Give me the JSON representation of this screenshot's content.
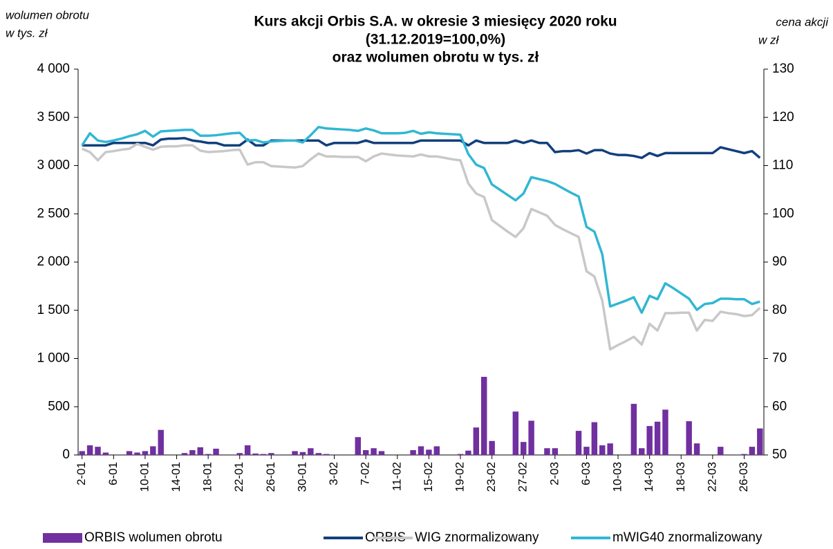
{
  "chart_data": {
    "type": "combo",
    "title": [
      "Kurs akcji Orbis S.A. w okresie 3 miesięcy 2020 roku",
      "(31.12.2019=100,0%)",
      "oraz wolumen obrotu w tys. zł"
    ],
    "y_label": [
      "wolumen obrotu",
      "w tys. zł"
    ],
    "y2_label": [
      "cena akcji",
      "w zł"
    ],
    "categories": [
      "2-01",
      null,
      null,
      null,
      "6-01",
      null,
      null,
      null,
      "10-01",
      null,
      null,
      null,
      "14-01",
      null,
      null,
      null,
      "18-01",
      null,
      null,
      null,
      "22-01",
      null,
      null,
      null,
      "26-01",
      null,
      null,
      null,
      "30-01",
      null,
      null,
      null,
      "3-02",
      null,
      null,
      null,
      "7-02",
      null,
      null,
      null,
      "11-02",
      null,
      null,
      null,
      "15-02",
      null,
      null,
      null,
      "19-02",
      null,
      null,
      null,
      "23-02",
      null,
      null,
      null,
      "27-02",
      null,
      null,
      null,
      "2-03",
      null,
      null,
      null,
      "6-03",
      null,
      null,
      null,
      "10-03",
      null,
      null,
      null,
      "14-03",
      null,
      null,
      null,
      "18-03",
      null,
      null,
      null,
      "22-03",
      null,
      null,
      null,
      "26-03",
      null,
      null
    ],
    "ylim": [
      0,
      4000
    ],
    "yticks": [
      0,
      500,
      {
        "value": 1000,
        "label": "1 000"
      },
      {
        "value": 1500,
        "label": "1 500"
      },
      {
        "value": 2000,
        "label": "2 000"
      },
      {
        "value": 2500,
        "label": "2 500"
      },
      {
        "value": 3000,
        "label": "3 000"
      },
      {
        "value": 3500,
        "label": "3 500"
      },
      {
        "value": 4000,
        "label": "4 000"
      }
    ],
    "y2lim": [
      50,
      130
    ],
    "y2ticks": [
      50,
      60,
      70,
      80,
      90,
      100,
      110,
      120,
      130
    ],
    "grid": false,
    "legend": "bottom",
    "series": [
      {
        "name": "ORBIS wolumen obrotu",
        "type": "bar",
        "color": "#7030a0",
        "values": [
          40,
          100,
          85,
          25,
          null,
          null,
          40,
          25,
          40,
          90,
          260,
          null,
          null,
          20,
          50,
          80,
          10,
          65,
          null,
          null,
          20,
          100,
          15,
          10,
          20,
          null,
          null,
          40,
          30,
          70,
          20,
          10,
          null,
          null,
          null,
          185,
          50,
          70,
          40,
          null,
          null,
          null,
          50,
          90,
          55,
          90,
          null,
          null,
          10,
          45,
          285,
          810,
          145,
          null,
          null,
          450,
          135,
          355,
          null,
          70,
          70,
          null,
          null,
          250,
          85,
          340,
          100,
          120,
          null,
          null,
          530,
          70,
          300,
          345,
          470,
          null,
          null,
          350,
          120,
          null,
          null,
          85,
          null,
          null,
          10,
          85,
          275
        ]
      },
      {
        "name": "ORBIS",
        "type": "line",
        "axis": "y2",
        "color": "#113f7c",
        "values": [
          114.2,
          114.2,
          114.2,
          114.2,
          114.7,
          114.7,
          114.7,
          114.7,
          114.7,
          114.2,
          115.4,
          115.6,
          115.6,
          115.7,
          115.2,
          115.0,
          114.7,
          114.7,
          114.2,
          114.2,
          114.2,
          115.4,
          114.2,
          114.2,
          115.2,
          115.2,
          115.2,
          115.2,
          115.2,
          115.2,
          115.2,
          114.2,
          114.7,
          114.7,
          114.7,
          114.7,
          115.2,
          114.7,
          114.7,
          114.7,
          114.7,
          114.7,
          114.7,
          115.2,
          115.2,
          115.2,
          115.2,
          115.2,
          115.2,
          114.2,
          115.2,
          114.7,
          114.7,
          114.7,
          114.7,
          115.2,
          114.7,
          115.2,
          114.7,
          114.7,
          112.8,
          113.0,
          113.0,
          113.2,
          112.5,
          113.2,
          113.2,
          112.5,
          112.2,
          112.2,
          112.0,
          111.6,
          112.6,
          112.0,
          112.6,
          112.6,
          112.6,
          112.6,
          112.6,
          112.6,
          112.6,
          113.8,
          113.4,
          113.0,
          112.6,
          113.0,
          111.6
        ]
      },
      {
        "name": "WIG znormalizowany",
        "type": "line",
        "axis": "y2",
        "color": "#c8c8c8",
        "values": [
          113.5,
          112.8,
          111.1,
          112.8,
          113.0,
          113.3,
          113.5,
          114.5,
          113.9,
          113.3,
          113.9,
          114.0,
          114.0,
          114.2,
          114.2,
          113.1,
          112.8,
          112.9,
          113.0,
          113.2,
          113.3,
          110.2,
          110.7,
          110.7,
          109.9,
          109.8,
          109.7,
          109.6,
          109.9,
          111.3,
          112.5,
          111.9,
          111.9,
          111.8,
          111.8,
          111.8,
          110.9,
          111.9,
          112.5,
          112.3,
          112.1,
          112.0,
          111.9,
          112.3,
          111.9,
          111.9,
          111.6,
          111.3,
          111.1,
          106.3,
          104.2,
          103.5,
          98.7,
          97.5,
          96.3,
          95.2,
          97.0,
          101.0,
          100.3,
          99.6,
          97.7,
          96.8,
          96.0,
          95.2,
          88.1,
          87.0,
          82.0,
          71.9,
          72.8,
          73.6,
          74.5,
          72.9,
          77.2,
          75.8,
          79.4,
          79.4,
          79.5,
          79.5,
          75.8,
          78.0,
          77.8,
          79.7,
          79.4,
          79.2,
          78.8,
          79.0,
          80.5
        ]
      },
      {
        "name": "mWIG40 znormalizowany",
        "type": "line",
        "axis": "y2",
        "color": "#31b7d3",
        "values": [
          114.2,
          116.7,
          115.2,
          114.9,
          115.2,
          115.6,
          116.1,
          116.5,
          117.2,
          116.0,
          117.1,
          117.2,
          117.3,
          117.4,
          117.4,
          116.2,
          116.2,
          116.3,
          116.5,
          116.7,
          116.8,
          115.2,
          115.3,
          114.8,
          115.0,
          115.1,
          115.2,
          115.2,
          114.8,
          116.3,
          118.0,
          117.7,
          117.6,
          117.5,
          117.4,
          117.2,
          117.7,
          117.3,
          116.7,
          116.7,
          116.7,
          116.8,
          117.2,
          116.6,
          116.9,
          116.7,
          116.6,
          116.5,
          116.4,
          112.4,
          110.2,
          109.5,
          106.1,
          105.0,
          103.9,
          102.8,
          104.2,
          107.6,
          107.2,
          106.8,
          106.2,
          105.3,
          104.4,
          103.6,
          97.3,
          96.3,
          91.6,
          80.8,
          81.4,
          82.0,
          82.7,
          79.5,
          83.0,
          82.3,
          85.6,
          84.6,
          83.5,
          82.4,
          80.1,
          81.3,
          81.5,
          82.4,
          82.4,
          82.3,
          82.3,
          81.3,
          81.8
        ]
      }
    ]
  }
}
